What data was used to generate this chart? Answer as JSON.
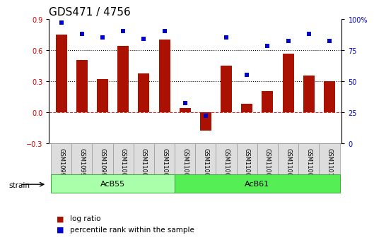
{
  "title": "GDS471 / 4756",
  "samples": [
    "GSM10997",
    "GSM10998",
    "GSM10999",
    "GSM11000",
    "GSM11001",
    "GSM11002",
    "GSM11003",
    "GSM11004",
    "GSM11005",
    "GSM11006",
    "GSM11007",
    "GSM11008",
    "GSM11009",
    "GSM11010"
  ],
  "log_ratio": [
    0.75,
    0.5,
    0.32,
    0.64,
    0.37,
    0.7,
    0.04,
    -0.18,
    0.45,
    0.08,
    0.2,
    0.56,
    0.35,
    0.3
  ],
  "percentile_rank": [
    97,
    88,
    85,
    90,
    84,
    90,
    32,
    22,
    85,
    55,
    78,
    82,
    88,
    82
  ],
  "groups": [
    {
      "label": "AcB55",
      "start": 0,
      "end": 6,
      "color": "#aaffaa"
    },
    {
      "label": "AcB61",
      "start": 6,
      "end": 14,
      "color": "#55ee55"
    }
  ],
  "bar_color": "#aa1100",
  "dot_color": "#0000cc",
  "ylim_left": [
    -0.3,
    0.9
  ],
  "ylim_right": [
    0,
    100
  ],
  "yticks_left": [
    -0.3,
    0.0,
    0.3,
    0.6,
    0.9
  ],
  "yticks_right": [
    0,
    25,
    50,
    75,
    100
  ],
  "background_color": "#ffffff",
  "title_fontsize": 11,
  "tick_fontsize": 7,
  "legend_log_ratio": "log ratio",
  "legend_percentile": "percentile rank within the sample",
  "strain_label": "strain",
  "group_label_fontsize": 8,
  "sample_fontsize": 6
}
